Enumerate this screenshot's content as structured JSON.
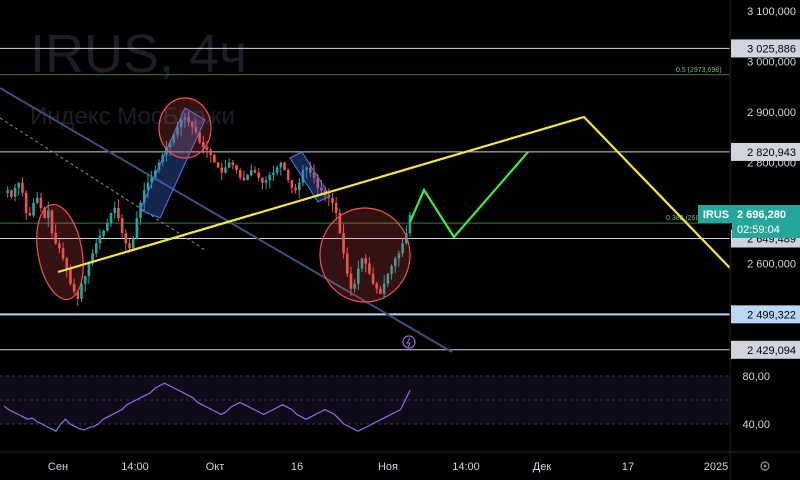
{
  "watermark": {
    "title": "IRUS, 4ч",
    "subtitle": "Индекс МосБиржи"
  },
  "price_axis": {
    "ticks": [
      {
        "value": 3100000,
        "label": "3 100,000"
      },
      {
        "value": 3000000,
        "label": "3 000,000"
      },
      {
        "value": 2900000,
        "label": "2 900,000"
      },
      {
        "value": 2800000,
        "label": "2 800,000"
      },
      {
        "value": 2600000,
        "label": "2 600,000"
      }
    ]
  },
  "levels": [
    {
      "value": 3025886,
      "label": "3 025,886",
      "color": "#d1d4dc"
    },
    {
      "value": 2820943,
      "label": "2 820,943",
      "color": "#d1d4dc"
    },
    {
      "value": 2649489,
      "label": "2 649,489",
      "color": "#d1d4dc"
    },
    {
      "value": 2499322,
      "label": "2 499,322",
      "color": "#bcd7f5"
    },
    {
      "value": 2429094,
      "label": "2 429,094",
      "color": "#d1d4dc"
    }
  ],
  "fib_levels": [
    {
      "value": 2973698,
      "label": "0.5 (2973,698)"
    },
    {
      "value": 2680000,
      "label": "0.382 (2680,4...)"
    }
  ],
  "current_price": {
    "ticker": "IRUS",
    "value": 2696280,
    "label": "2 696,280",
    "countdown": "02:59:04",
    "color": "#26a69a"
  },
  "time_axis": {
    "labels": [
      "Сен",
      "14:00",
      "Окт",
      "16",
      "Ноя",
      "14:00",
      "Дек",
      "17",
      "2025"
    ]
  },
  "rsi_axis": {
    "ticks": [
      {
        "value": 80,
        "label": "80,00"
      },
      {
        "value": 40,
        "label": "40,00"
      }
    ]
  },
  "colors": {
    "up": "#26a69a",
    "down": "#ef5350",
    "trendline": "#f5e63c",
    "forecast_up": "#3fe83f",
    "forecast_down": "#f5e63c",
    "channel": "#3a4f7a",
    "rsi": "#8c6ee8"
  },
  "chart_data": {
    "type": "candlestick",
    "title": "IRUS, 4ч",
    "symbol": "IRUS",
    "ylim": [
      2420000,
      3120000
    ],
    "close_series": [
      2740000,
      2745000,
      2732000,
      2750000,
      2760000,
      2740000,
      2700000,
      2695000,
      2720000,
      2730000,
      2710000,
      2690000,
      2705000,
      2660000,
      2640000,
      2630000,
      2610000,
      2590000,
      2560000,
      2545000,
      2530000,
      2560000,
      2575000,
      2600000,
      2620000,
      2640000,
      2655000,
      2665000,
      2680000,
      2700000,
      2710000,
      2690000,
      2660000,
      2640000,
      2630000,
      2650000,
      2690000,
      2720000,
      2745000,
      2760000,
      2770000,
      2785000,
      2800000,
      2815000,
      2830000,
      2840000,
      2855000,
      2870000,
      2885000,
      2890000,
      2880000,
      2870000,
      2860000,
      2840000,
      2830000,
      2825000,
      2815000,
      2800000,
      2790000,
      2780000,
      2790000,
      2800000,
      2795000,
      2785000,
      2770000,
      2765000,
      2775000,
      2785000,
      2780000,
      2770000,
      2760000,
      2765000,
      2775000,
      2780000,
      2790000,
      2800000,
      2785000,
      2765000,
      2750000,
      2745000,
      2760000,
      2785000,
      2790000,
      2780000,
      2770000,
      2750000,
      2745000,
      2735000,
      2730000,
      2720000,
      2700000,
      2660000,
      2620000,
      2580000,
      2550000,
      2560000,
      2590000,
      2610000,
      2600000,
      2580000,
      2560000,
      2550000,
      2540000,
      2560000,
      2580000,
      2595000,
      2610000,
      2620000,
      2640000,
      2660000,
      2696280
    ],
    "rsi_values": [
      55,
      52,
      50,
      48,
      46,
      44,
      45,
      42,
      40,
      38,
      36,
      34,
      40,
      44,
      40,
      38,
      36,
      35,
      37,
      38,
      40,
      44,
      46,
      48,
      50,
      52,
      56,
      58,
      60,
      62,
      64,
      66,
      70,
      72,
      74,
      72,
      70,
      68,
      66,
      64,
      62,
      58,
      56,
      54,
      52,
      50,
      48,
      50,
      54,
      56,
      58,
      56,
      54,
      52,
      50,
      48,
      50,
      52,
      54,
      56,
      54,
      52,
      48,
      46,
      44,
      46,
      48,
      50,
      52,
      50,
      48,
      44,
      40,
      38,
      36,
      34,
      36,
      38,
      40,
      42,
      44,
      46,
      48,
      50,
      52,
      60,
      68
    ],
    "rsi_ylim": [
      30,
      85
    ]
  }
}
